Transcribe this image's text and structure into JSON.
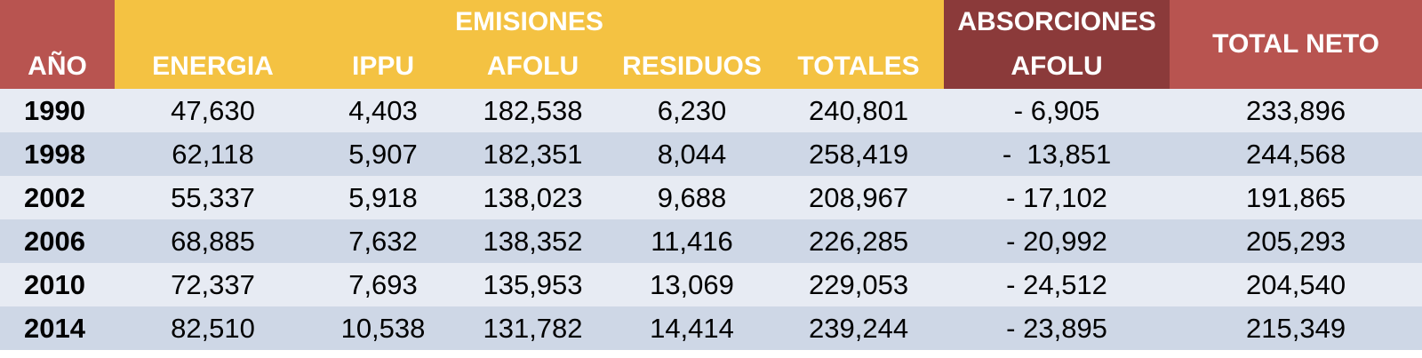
{
  "table": {
    "year_header": "AÑO",
    "emisiones_header": "EMISIONES",
    "absorciones_header": "ABSORCIONES",
    "total_neto_header": "TOTAL NETO",
    "subheaders": [
      "ENERGIA",
      "IPPU",
      "AFOLU",
      "RESIDUOS",
      "TOTALES",
      "AFOLU"
    ]
  },
  "colors": {
    "header_red": "#b85450",
    "header_yellow": "#f4c242",
    "header_dark_red": "#8b3a3a",
    "row_light": "#e7ebf3",
    "row_dark": "#ced7e6"
  },
  "chart_data": {
    "type": "table",
    "columns": [
      "AÑO",
      "ENERGIA",
      "IPPU",
      "AFOLU",
      "RESIDUOS",
      "TOTALES",
      "AFOLU",
      "TOTAL NETO"
    ],
    "rows": [
      [
        "1990",
        "47,630",
        "4,403",
        "182,538",
        "6,230",
        "240,801",
        "- 6,905",
        "233,896"
      ],
      [
        "1998",
        "62,118",
        "5,907",
        "182,351",
        "8,044",
        "258,419",
        "-  13,851",
        "244,568"
      ],
      [
        "2002",
        "55,337",
        "5,918",
        "138,023",
        "9,688",
        "208,967",
        "- 17,102",
        "191,865"
      ],
      [
        "2006",
        "68,885",
        "7,632",
        "138,352",
        "11,416",
        "226,285",
        "- 20,992",
        "205,293"
      ],
      [
        "2010",
        "72,337",
        "7,693",
        "135,953",
        "13,069",
        "229,053",
        "- 24,512",
        "204,540"
      ],
      [
        "2014",
        "82,510",
        "10,538",
        "131,782",
        "14,414",
        "239,244",
        "- 23,895",
        "215,349"
      ]
    ]
  }
}
